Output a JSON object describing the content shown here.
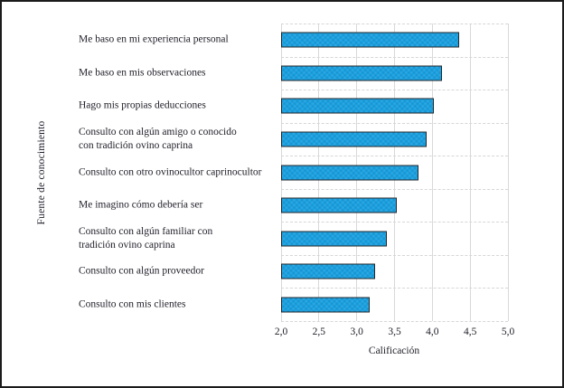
{
  "chart_data": {
    "type": "bar",
    "orientation": "horizontal",
    "title": "",
    "xlabel": "Calificación",
    "ylabel": "Fuente de conocimiento",
    "xlim": [
      2.0,
      5.0
    ],
    "xticks": {
      "labels": [
        "2,0",
        "2,5",
        "3,0",
        "3,5",
        "4,0",
        "4,5",
        "5,0"
      ],
      "values": [
        2.0,
        2.5,
        3.0,
        3.5,
        4.0,
        4.5,
        5.0
      ]
    },
    "categories": [
      "Me baso en mi experiencia personal",
      "Me baso en mis observaciones",
      "Hago mis propias deducciones",
      "Consulto con algún amigo o conocido\ncon tradición ovino caprina",
      "Consulto con otro ovinocultor caprinocultor",
      "Me imagino cómo debería ser",
      "Consulto con algún familiar con\ntradición ovino caprina",
      "Consulto con algún proveedor",
      "Consulto con mis clientes"
    ],
    "values": [
      4.33,
      4.1,
      4.0,
      3.9,
      3.79,
      3.5,
      3.38,
      3.22,
      3.15
    ],
    "grid": true,
    "legend": "none",
    "colors": {
      "bar_fill": "#18a1e1",
      "bar_border": "#23272b",
      "gridline": "#d9d9d9",
      "row_divider": "#d6d6d6",
      "text": "#21212b",
      "frame_border": "#1b1b1b",
      "background": "#ffffff"
    }
  }
}
